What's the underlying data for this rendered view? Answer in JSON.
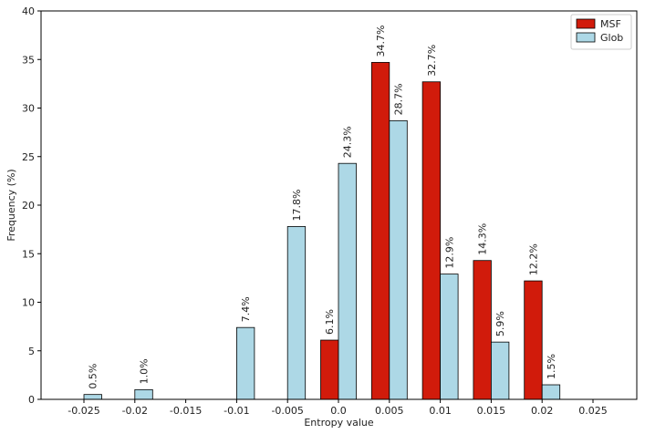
{
  "chart_data": {
    "type": "bar",
    "xlabel": "Entropy value",
    "ylabel": "Frequency (%)",
    "ylim": [
      0,
      40
    ],
    "yticks": [
      0,
      5,
      10,
      15,
      20,
      25,
      30,
      35,
      40
    ],
    "categories": [
      "-0.025",
      "-0.02",
      "-0.015",
      "-0.01",
      "-0.005",
      "0.0",
      "0.005",
      "0.01",
      "0.015",
      "0.02",
      "0.025"
    ],
    "grid": false,
    "legend_position": "top-right",
    "series": [
      {
        "name": "MSF",
        "color": "#d11b0b",
        "values": [
          null,
          null,
          null,
          null,
          null,
          6.1,
          34.7,
          32.7,
          14.3,
          12.2,
          null
        ],
        "labels": [
          null,
          null,
          null,
          null,
          null,
          "6.1%",
          "34.7%",
          "32.7%",
          "14.3%",
          "12.2%",
          null
        ]
      },
      {
        "name": "Glob",
        "color": "#add8e6",
        "values": [
          0.5,
          1.0,
          null,
          7.4,
          17.8,
          24.3,
          28.7,
          12.9,
          5.9,
          1.5,
          null
        ],
        "labels": [
          "0.5%",
          "1.0%",
          null,
          "7.4%",
          "17.8%",
          "24.3%",
          "28.7%",
          "12.9%",
          "5.9%",
          "1.5%",
          null
        ]
      }
    ]
  }
}
